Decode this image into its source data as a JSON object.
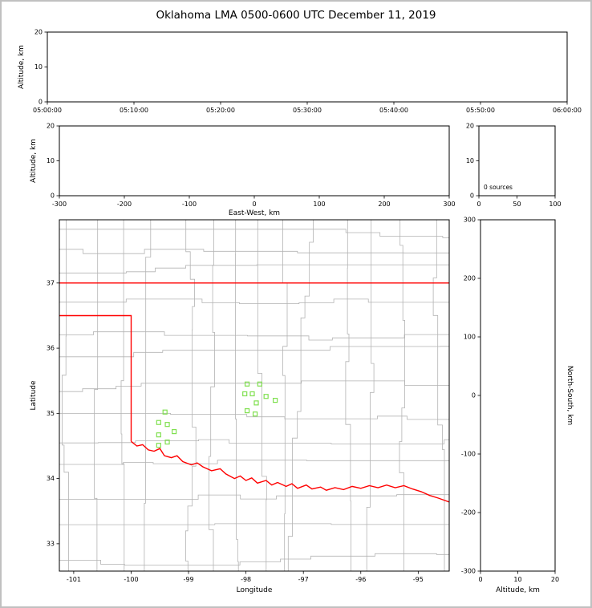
{
  "title": "Oklahoma LMA 0500-0600 UTC December 11, 2019",
  "colors": {
    "background": "#ffffff",
    "frame": "#c0c0c0",
    "axis": "#000000",
    "county_lines": "#b3b3b3",
    "state_border": "#ff0000",
    "stations": "#80e050"
  },
  "chart_data": [
    {
      "id": "time_height",
      "name": "time-altitude panel",
      "type": "scatter",
      "xlim": [
        0,
        6
      ],
      "xticks": [
        0,
        1,
        2,
        3,
        4,
        5,
        6
      ],
      "xtick_labels": [
        "05:00:00",
        "05:10:00",
        "05:20:00",
        "05:30:00",
        "05:40:00",
        "05:50:00",
        "06:00:00"
      ],
      "ylim": [
        0,
        20
      ],
      "yticks": [
        0,
        10,
        20
      ],
      "ylabel": "Altitude, km",
      "points": []
    },
    {
      "id": "ew_height",
      "name": "east-west-altitude panel",
      "type": "scatter",
      "xlim": [
        -300,
        300
      ],
      "xticks": [
        -300,
        -200,
        -100,
        0,
        100,
        200,
        300
      ],
      "xlabel": "East-West, km",
      "ylim": [
        0,
        20
      ],
      "yticks": [
        0,
        10,
        20
      ],
      "ylabel": "Altitude, km",
      "points": []
    },
    {
      "id": "alt_histogram",
      "name": "altitude histogram panel",
      "type": "line",
      "xlim": [
        0,
        100
      ],
      "xticks": [
        0,
        50,
        100
      ],
      "ylim": [
        0,
        20
      ],
      "yticks": [
        0,
        10,
        20
      ],
      "annotation": "0 sources",
      "points": []
    },
    {
      "id": "plan_view_map",
      "name": "plan view map of Oklahoma",
      "type": "scatter",
      "xlim": [
        -101.25,
        -94.46
      ],
      "xticks": [
        -101,
        -100,
        -99,
        -98,
        -97,
        -96,
        -95
      ],
      "xlabel": "Longitude",
      "ylim": [
        32.58,
        37.97
      ],
      "yticks": [
        33,
        34,
        35,
        36,
        37
      ],
      "ylabel": "Latitude",
      "stations": [
        [
          -99.41,
          35.02
        ],
        [
          -99.52,
          34.86
        ],
        [
          -99.37,
          34.83
        ],
        [
          -99.25,
          34.72
        ],
        [
          -99.52,
          34.67
        ],
        [
          -99.37,
          34.56
        ],
        [
          -99.52,
          34.51
        ],
        [
          -97.98,
          35.45
        ],
        [
          -97.76,
          35.45
        ],
        [
          -98.02,
          35.3
        ],
        [
          -97.89,
          35.3
        ],
        [
          -97.65,
          35.26
        ],
        [
          -97.49,
          35.2
        ],
        [
          -97.82,
          35.16
        ],
        [
          -97.98,
          35.04
        ],
        [
          -97.84,
          34.99
        ]
      ],
      "state_border": [
        [
          [
            -101.25,
            37.0
          ],
          [
            -94.46,
            37.0
          ]
        ],
        [
          [
            -101.25,
            36.5
          ],
          [
            -100.0,
            36.5
          ],
          [
            -100.0,
            34.57
          ]
        ],
        [
          [
            -100.0,
            34.57
          ],
          [
            -99.9,
            34.5
          ],
          [
            -99.8,
            34.52
          ],
          [
            -99.7,
            34.44
          ],
          [
            -99.6,
            34.42
          ],
          [
            -99.5,
            34.46
          ],
          [
            -99.42,
            34.35
          ],
          [
            -99.3,
            34.32
          ],
          [
            -99.2,
            34.35
          ],
          [
            -99.1,
            34.26
          ],
          [
            -98.95,
            34.21
          ],
          [
            -98.85,
            34.24
          ],
          [
            -98.75,
            34.18
          ],
          [
            -98.6,
            34.12
          ],
          [
            -98.45,
            34.15
          ],
          [
            -98.35,
            34.07
          ],
          [
            -98.2,
            34.0
          ],
          [
            -98.1,
            34.04
          ],
          [
            -98.0,
            33.97
          ],
          [
            -97.9,
            34.01
          ],
          [
            -97.8,
            33.93
          ],
          [
            -97.65,
            33.97
          ],
          [
            -97.55,
            33.9
          ],
          [
            -97.45,
            33.94
          ],
          [
            -97.3,
            33.88
          ],
          [
            -97.2,
            33.92
          ],
          [
            -97.1,
            33.85
          ],
          [
            -96.95,
            33.9
          ],
          [
            -96.85,
            33.84
          ],
          [
            -96.7,
            33.87
          ],
          [
            -96.6,
            33.82
          ],
          [
            -96.45,
            33.86
          ],
          [
            -96.3,
            33.83
          ],
          [
            -96.15,
            33.88
          ],
          [
            -96.0,
            33.85
          ],
          [
            -95.85,
            33.89
          ],
          [
            -95.7,
            33.86
          ],
          [
            -95.55,
            33.9
          ],
          [
            -95.4,
            33.86
          ],
          [
            -95.25,
            33.89
          ],
          [
            -95.1,
            33.84
          ],
          [
            -94.95,
            33.8
          ],
          [
            -94.8,
            33.74
          ],
          [
            -94.65,
            33.7
          ],
          [
            -94.46,
            33.64
          ]
        ]
      ]
    },
    {
      "id": "ns_height",
      "name": "altitude-north-south panel",
      "type": "scatter",
      "xlim": [
        0,
        20
      ],
      "xticks": [
        0,
        10,
        20
      ],
      "xlabel": "Altitude, km",
      "ylim": [
        -300,
        300
      ],
      "yticks": [
        300,
        200,
        100,
        0,
        -100,
        -200,
        -300
      ],
      "ylabel_right": "North-South, km",
      "points": []
    }
  ]
}
